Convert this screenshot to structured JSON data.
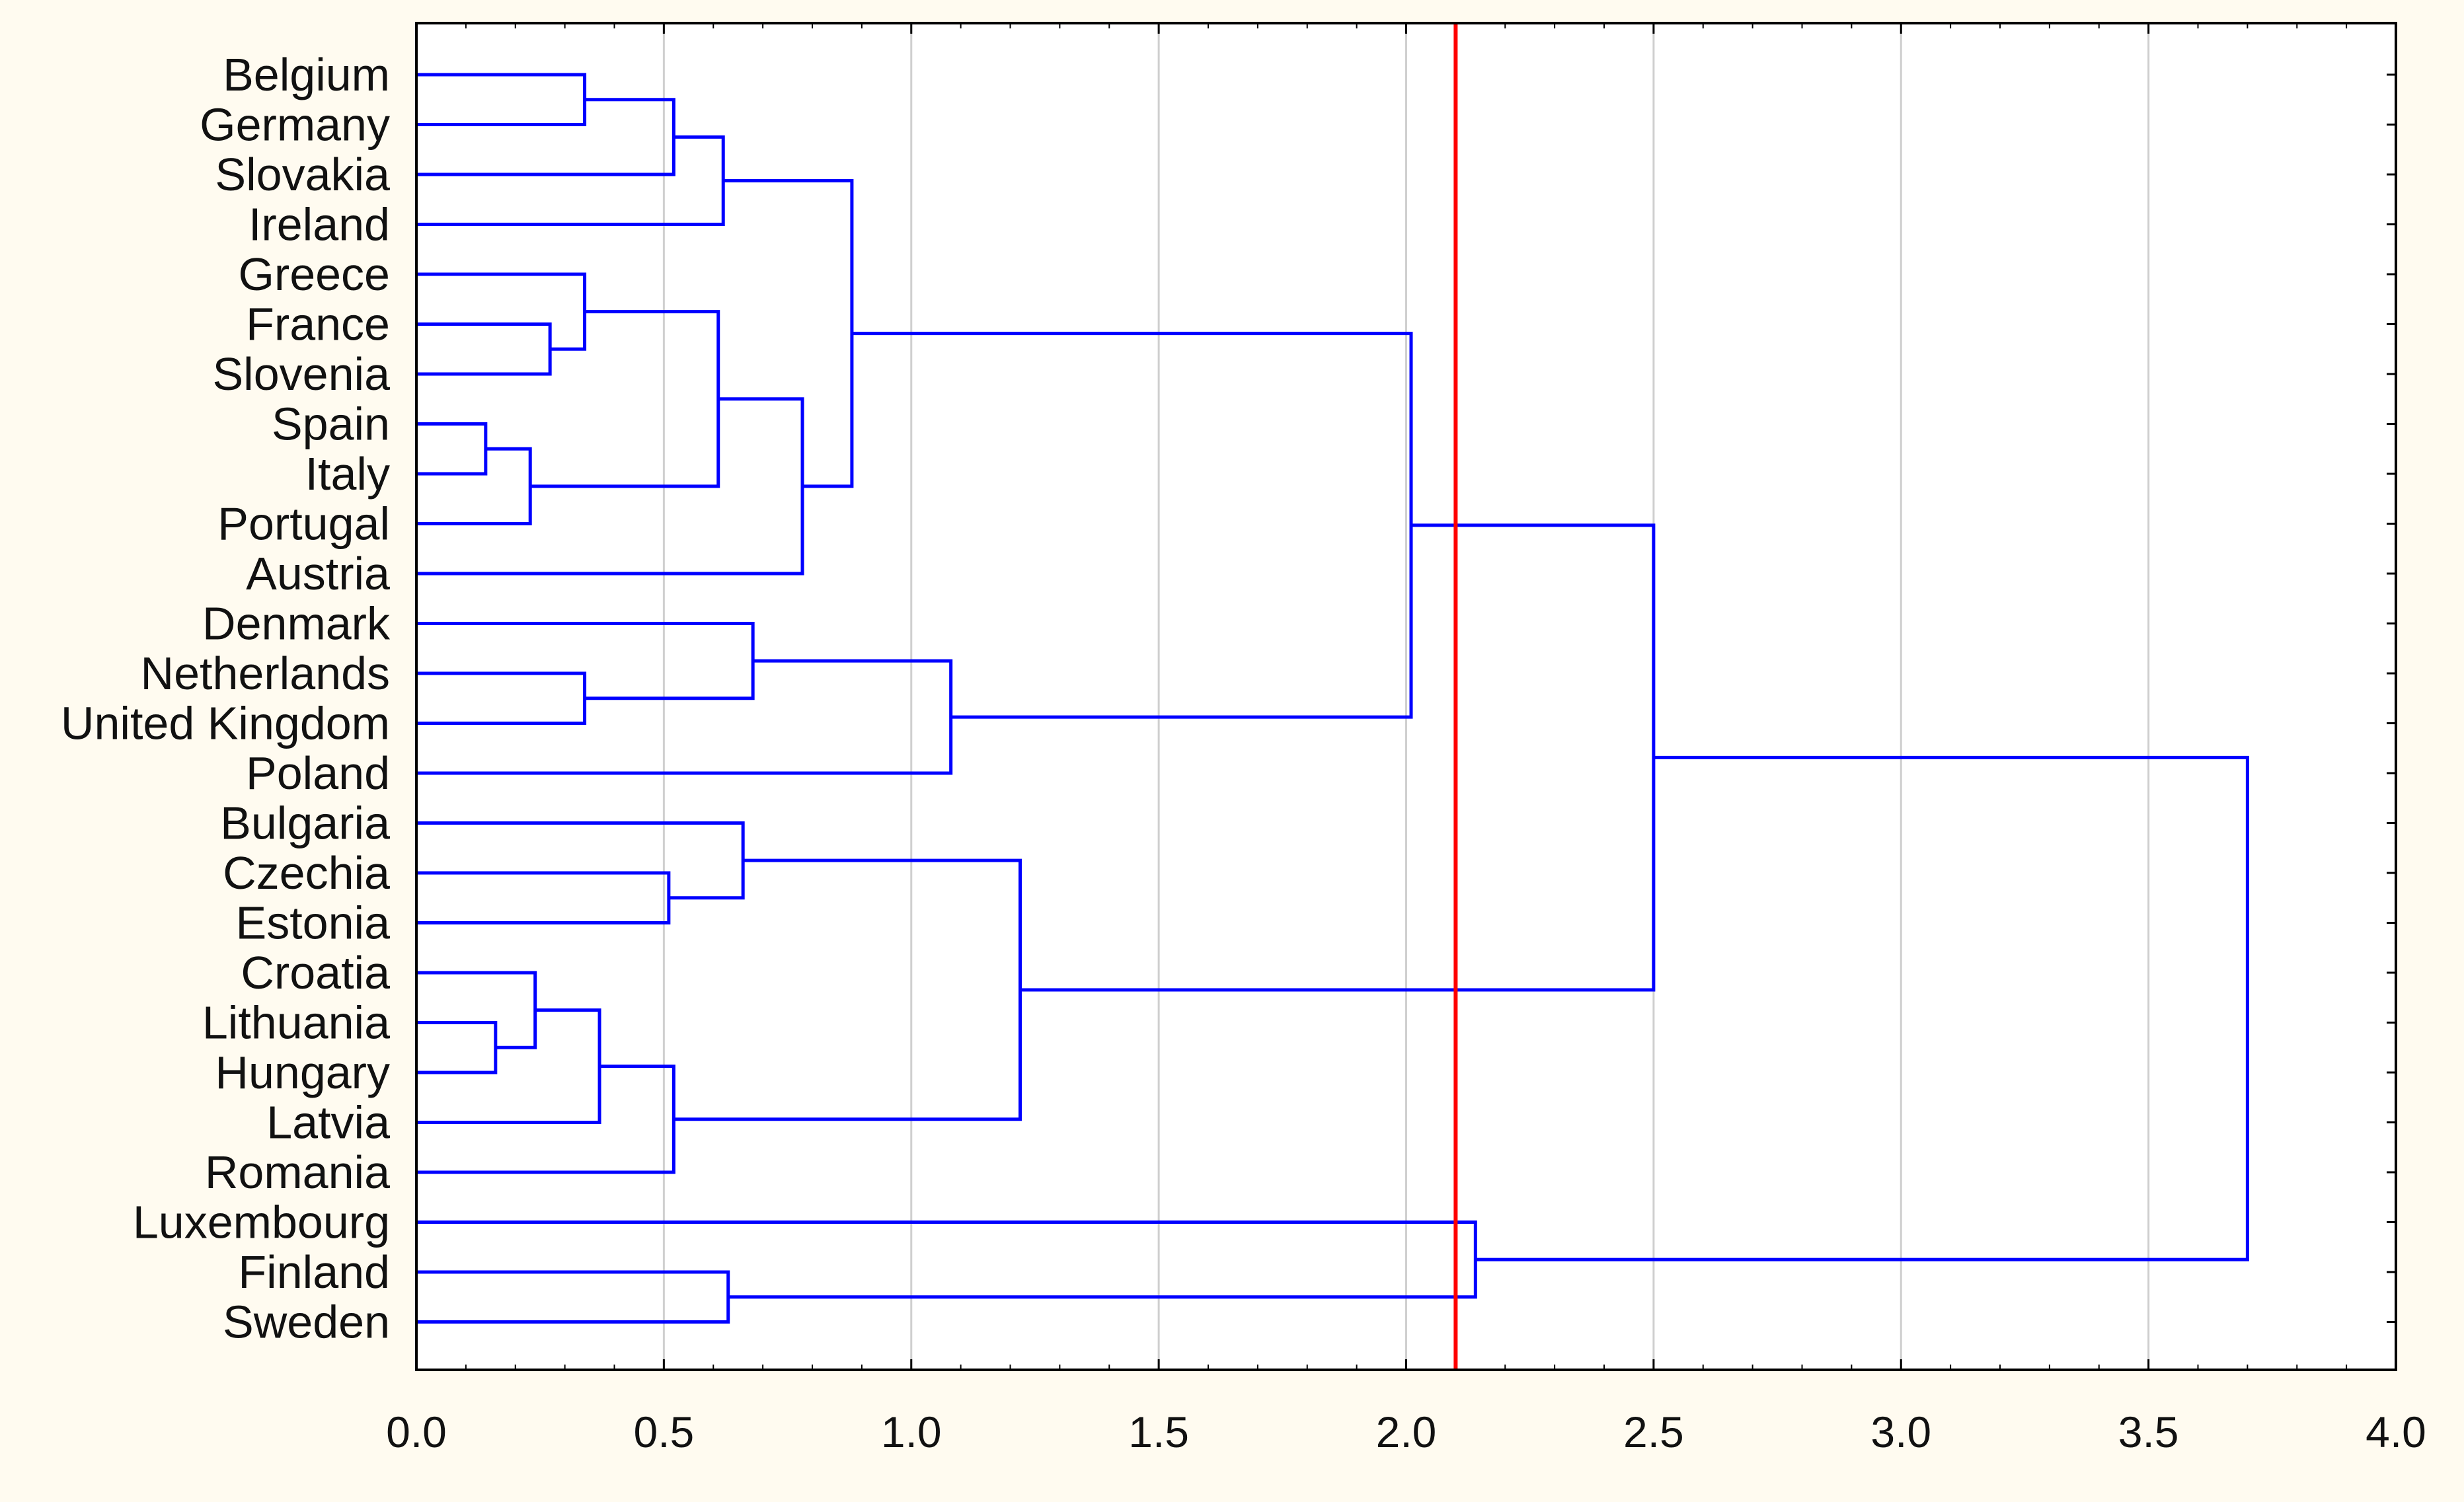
{
  "chart_data": {
    "type": "dendrogram",
    "title": "",
    "xlabel": "",
    "ylabel": "",
    "orientation": "horizontal",
    "xlim": [
      0.0,
      4.0
    ],
    "x_ticks": [
      "0.0",
      "0.5",
      "1.0",
      "1.5",
      "2.0",
      "2.5",
      "3.0",
      "3.5",
      "4.0"
    ],
    "grid": "vertical",
    "cut_line": {
      "x": 2.1,
      "color": "#ff0000"
    },
    "link_color": "#0000ff",
    "leaves": [
      "Belgium",
      "Germany",
      "Slovakia",
      "Ireland",
      "Greece",
      "France",
      "Slovenia",
      "Spain",
      "Italy",
      "Portugal",
      "Austria",
      "Denmark",
      "Netherlands",
      "United Kingdom",
      "Poland",
      "Bulgaria",
      "Czechia",
      "Estonia",
      "Croatia",
      "Lithuania",
      "Hungary",
      "Latvia",
      "Romania",
      "Luxembourg",
      "Finland",
      "Sweden"
    ],
    "merges": [
      {
        "id": "m1",
        "a": "Spain",
        "b": "Italy",
        "height": 0.14
      },
      {
        "id": "m2",
        "a": "Lithuania",
        "b": "Hungary",
        "height": 0.16
      },
      {
        "id": "m3",
        "a": "m1",
        "b": "Portugal",
        "height": 0.23
      },
      {
        "id": "m4",
        "a": "Croatia",
        "b": "m2",
        "height": 0.24
      },
      {
        "id": "m5",
        "a": "France",
        "b": "Slovenia",
        "height": 0.27
      },
      {
        "id": "m6",
        "a": "Belgium",
        "b": "Germany",
        "height": 0.34
      },
      {
        "id": "m7",
        "a": "Greece",
        "b": "m5",
        "height": 0.34
      },
      {
        "id": "m8",
        "a": "Netherlands",
        "b": "United Kingdom",
        "height": 0.34
      },
      {
        "id": "m9",
        "a": "m4",
        "b": "Latvia",
        "height": 0.37
      },
      {
        "id": "m10",
        "a": "Czechia",
        "b": "Estonia",
        "height": 0.51
      },
      {
        "id": "m11",
        "a": "m6",
        "b": "Slovakia",
        "height": 0.52
      },
      {
        "id": "m12",
        "a": "m9",
        "b": "Romania",
        "height": 0.52
      },
      {
        "id": "m13",
        "a": "m7",
        "b": "m3",
        "height": 0.61
      },
      {
        "id": "m14",
        "a": "m11",
        "b": "Ireland",
        "height": 0.62
      },
      {
        "id": "m15",
        "a": "Finland",
        "b": "Sweden",
        "height": 0.63
      },
      {
        "id": "m16",
        "a": "Bulgaria",
        "b": "m10",
        "height": 0.66
      },
      {
        "id": "m17",
        "a": "Denmark",
        "b": "m8",
        "height": 0.68
      },
      {
        "id": "m18",
        "a": "m13",
        "b": "Austria",
        "height": 0.78
      },
      {
        "id": "m19",
        "a": "m14",
        "b": "m18",
        "height": 0.88
      },
      {
        "id": "m20",
        "a": "m17",
        "b": "Poland",
        "height": 1.08
      },
      {
        "id": "m21",
        "a": "m16",
        "b": "m12",
        "height": 1.22
      },
      {
        "id": "m22",
        "a": "m19",
        "b": "m20",
        "height": 2.01
      },
      {
        "id": "m23",
        "a": "Luxembourg",
        "b": "m15",
        "height": 2.14
      },
      {
        "id": "m24",
        "a": "m22",
        "b": "m21",
        "height": 2.5
      },
      {
        "id": "m25",
        "a": "m24",
        "b": "m23",
        "height": 3.7
      }
    ]
  }
}
